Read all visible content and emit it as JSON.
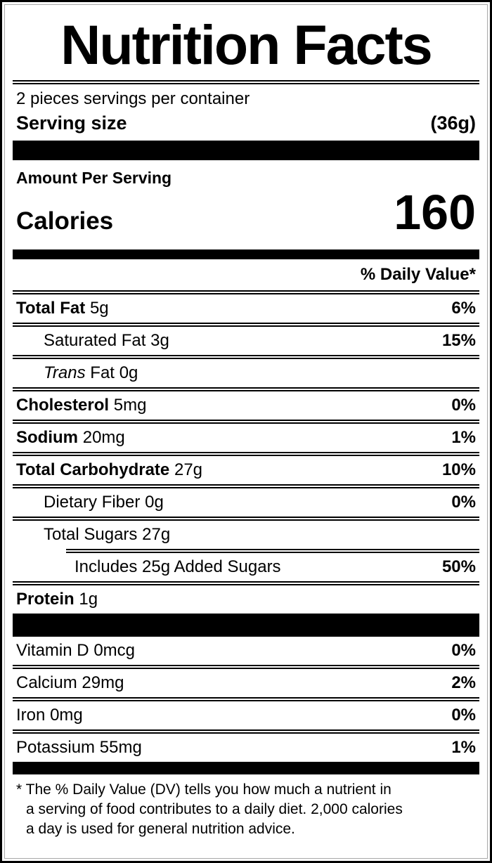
{
  "colors": {
    "text": "#000000",
    "background": "#ffffff",
    "outer_border": "#000000",
    "inner_border": "#a8a8a8"
  },
  "label": {
    "title": "Nutrition Facts",
    "servings_per_container": "2 pieces servings per container",
    "serving_size_label": "Serving size",
    "serving_size_value": "(36g)",
    "amount_per_serving": "Amount Per Serving",
    "calories_label": "Calories",
    "calories_value": "160",
    "daily_value_header": "% Daily Value*",
    "nutrients": [
      {
        "name": "Total Fat",
        "amount": "5g",
        "dv": "6%"
      },
      {
        "name": "Saturated Fat",
        "amount": "3g",
        "dv": "15%"
      },
      {
        "name_italic": "Trans",
        "name_rest": "Fat",
        "amount": "0g",
        "dv": ""
      },
      {
        "name": "Cholesterol",
        "amount": "5mg",
        "dv": "0%"
      },
      {
        "name": "Sodium",
        "amount": "20mg",
        "dv": "1%"
      },
      {
        "name": "Total Carbohydrate",
        "amount": "27g",
        "dv": "10%"
      },
      {
        "name": "Dietary Fiber",
        "amount": "0g",
        "dv": "0%"
      },
      {
        "name": "Total Sugars",
        "amount": "27g",
        "dv": ""
      },
      {
        "name": "Includes 25g Added Sugars",
        "amount": "",
        "dv": "50%"
      },
      {
        "name": "Protein",
        "amount": "1g",
        "dv": ""
      }
    ],
    "vitamins": [
      {
        "name": "Vitamin D",
        "amount": "0mcg",
        "dv": "0%"
      },
      {
        "name": "Calcium",
        "amount": "29mg",
        "dv": "2%"
      },
      {
        "name": "Iron",
        "amount": "0mg",
        "dv": "0%"
      },
      {
        "name": "Potassium",
        "amount": "55mg",
        "dv": "1%"
      }
    ],
    "footnote_line_1": "* The % Daily Value (DV) tells you how much a nutrient in",
    "footnote_line_2": "a serving of food contributes to a daily diet. 2,000 calories",
    "footnote_line_3": "a day is used for general nutrition advice."
  }
}
